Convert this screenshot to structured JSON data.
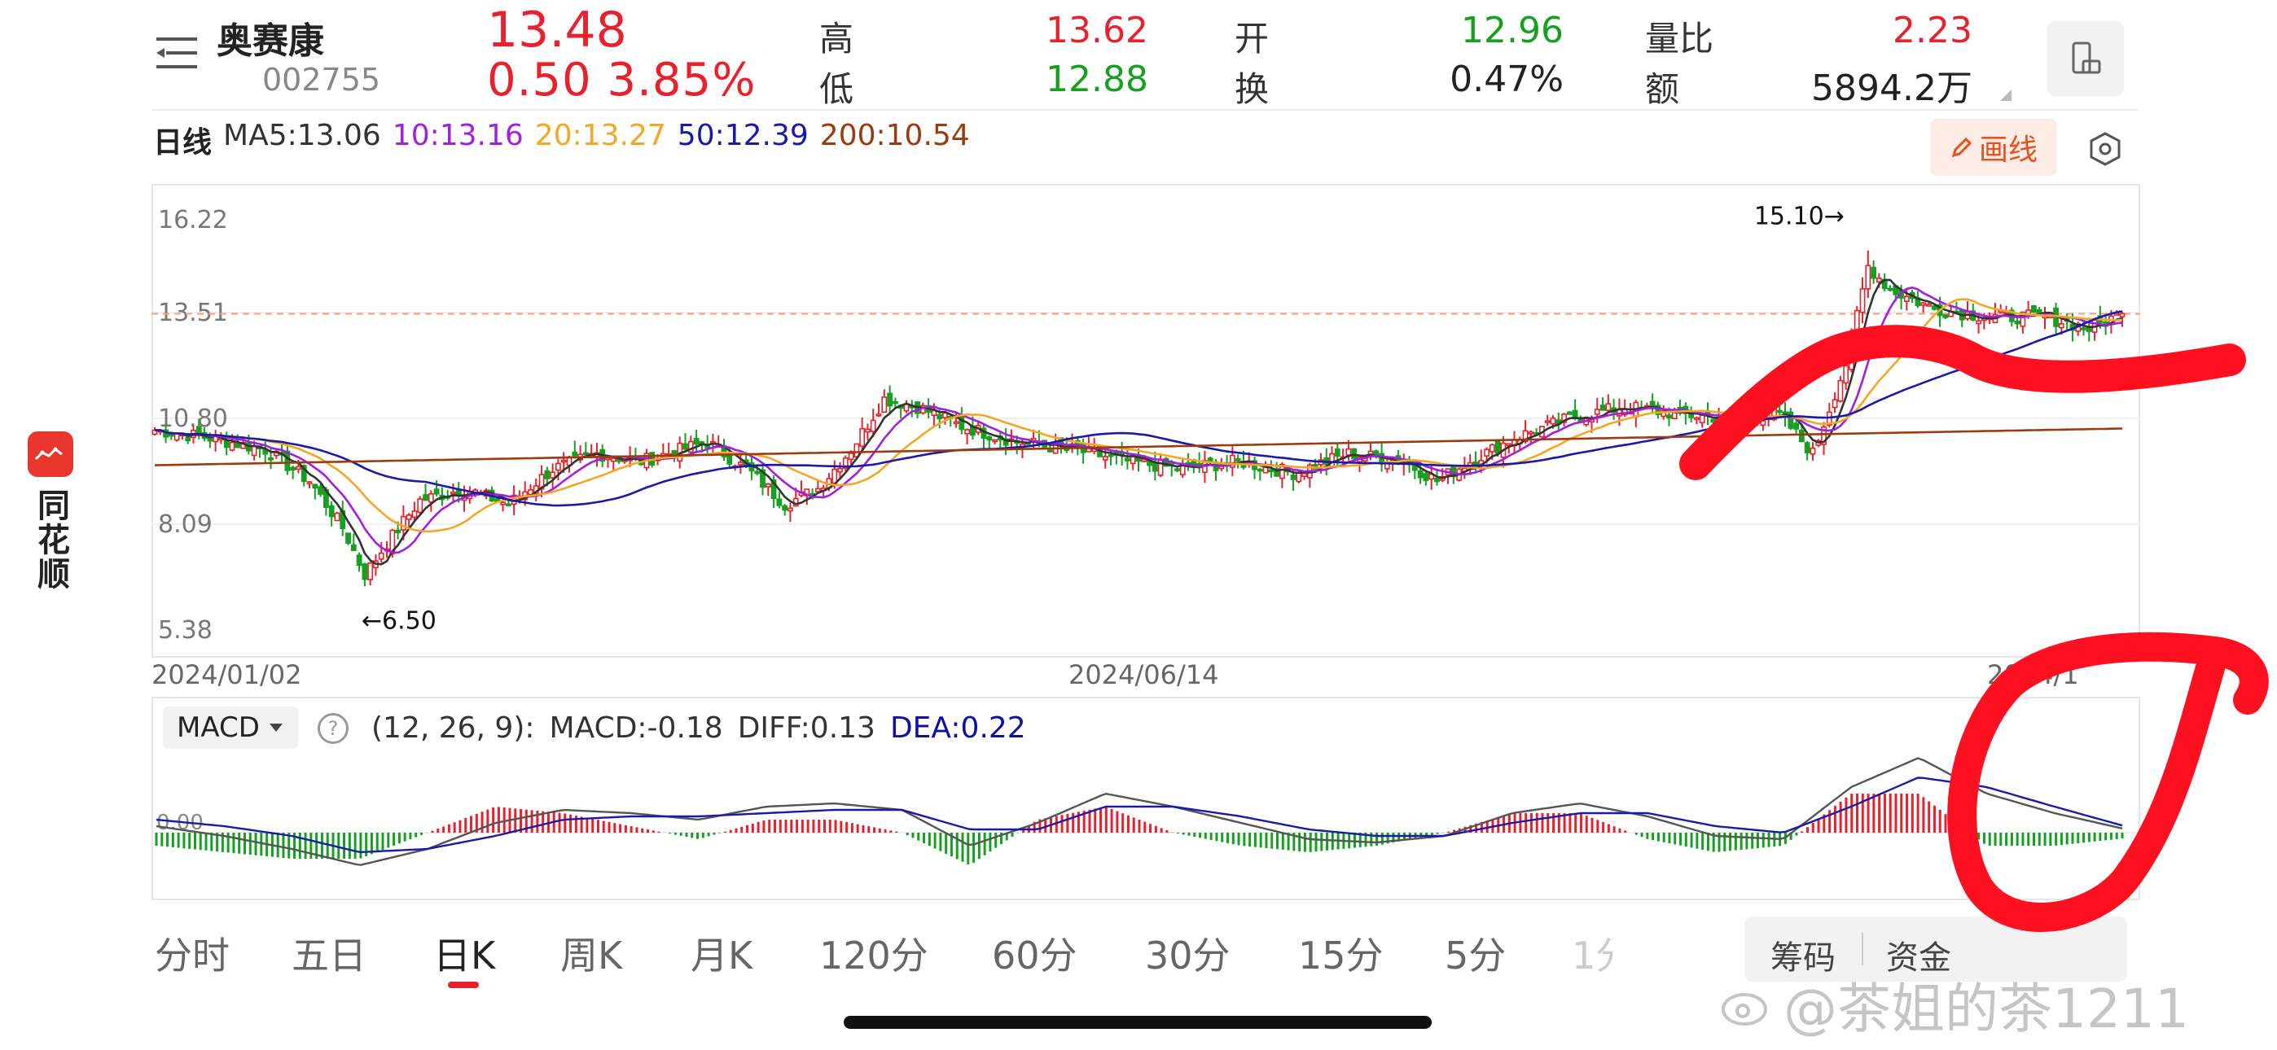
{
  "app": {
    "name": "同花顺"
  },
  "stock": {
    "name": "奥赛康",
    "code": "002755",
    "price": "13.48",
    "change": "0.50",
    "change_pct": "3.85%"
  },
  "quote": {
    "high_label": "高",
    "high": "13.62",
    "low_label": "低",
    "low": "12.88",
    "open_label": "开",
    "open": "12.96",
    "turnover_label": "换",
    "turnover": "0.47%",
    "volume_ratio_label": "量比",
    "volume_ratio": "2.23",
    "amount_label": "额",
    "amount": "5894.2万"
  },
  "ma_legend": {
    "title": "日线",
    "ma5": "MA5:13.06",
    "ma10": "10:13.16",
    "ma20": "20:13.27",
    "ma50": "50:12.39",
    "ma200": "200:10.54"
  },
  "toolbar": {
    "draw_label": "画线"
  },
  "colors": {
    "up": "#e8212c",
    "down": "#15a020",
    "ma5": "#333333",
    "ma10": "#a21fe0",
    "ma20": "#f5a623",
    "ma50": "#1a1aa8",
    "ma200": "#9c3b10",
    "annotation": "#ff1020"
  },
  "chart_data": [
    {
      "type": "candlestick",
      "y_ticks": [
        "16.22",
        "13.51",
        "10.80",
        "8.09",
        "5.38"
      ],
      "ylim": [
        5.38,
        16.22
      ],
      "current_price_line": 13.48,
      "x_labels": [
        "2024/01/02",
        "2024/06/14",
        "2024/1"
      ],
      "annotations": {
        "high": "15.10→",
        "low": "←6.50"
      },
      "ma_closing_values": {
        "MA5": 13.06,
        "MA10": 13.16,
        "MA20": 13.27,
        "MA50": 12.39,
        "MA200": 10.54
      },
      "close_path": [
        [
          0,
          10.5
        ],
        [
          10,
          10.3
        ],
        [
          20,
          10.0
        ],
        [
          28,
          9.2
        ],
        [
          34,
          8.0
        ],
        [
          38,
          6.8
        ],
        [
          42,
          7.6
        ],
        [
          48,
          8.7
        ],
        [
          56,
          9.0
        ],
        [
          64,
          8.6
        ],
        [
          72,
          9.5
        ],
        [
          80,
          9.9
        ],
        [
          88,
          9.7
        ],
        [
          100,
          10.2
        ],
        [
          108,
          9.4
        ],
        [
          114,
          8.6
        ],
        [
          120,
          9.0
        ],
        [
          126,
          10.0
        ],
        [
          132,
          11.3
        ],
        [
          138,
          11.1
        ],
        [
          146,
          10.6
        ],
        [
          156,
          10.2
        ],
        [
          166,
          10.0
        ],
        [
          176,
          9.7
        ],
        [
          186,
          9.5
        ],
        [
          196,
          9.7
        ],
        [
          206,
          9.4
        ],
        [
          216,
          9.9
        ],
        [
          226,
          9.7
        ],
        [
          232,
          9.2
        ],
        [
          238,
          9.7
        ],
        [
          246,
          10.3
        ],
        [
          256,
          10.8
        ],
        [
          266,
          11.1
        ],
        [
          276,
          10.9
        ],
        [
          286,
          10.8
        ],
        [
          294,
          10.9
        ],
        [
          300,
          9.9
        ],
        [
          306,
          12.2
        ],
        [
          310,
          14.7
        ],
        [
          314,
          14.1
        ],
        [
          322,
          13.6
        ],
        [
          332,
          13.4
        ],
        [
          342,
          13.4
        ],
        [
          350,
          13.1
        ],
        [
          356,
          13.48
        ]
      ]
    },
    {
      "type": "macd",
      "params": "(12, 26, 9):",
      "macd": "MACD:-0.18",
      "diff": "DIFF:0.13",
      "dea": "DEA:0.22",
      "zero_label": "0.00",
      "series": [
        {
          "name": "DIFF",
          "values": [
            0.2,
            -0.1,
            -0.5,
            -1.0,
            -0.5,
            0.3,
            0.7,
            0.6,
            0.4,
            0.8,
            0.9,
            0.7,
            -0.4,
            0.3,
            1.2,
            0.8,
            0.3,
            -0.2,
            -0.3,
            -0.1,
            0.6,
            0.9,
            0.5,
            -0.1,
            -0.2,
            1.4,
            2.3,
            1.2,
            0.6,
            0.13
          ]
        },
        {
          "name": "DEA",
          "values": [
            0.4,
            0.2,
            -0.1,
            -0.6,
            -0.5,
            -0.1,
            0.4,
            0.5,
            0.5,
            0.6,
            0.7,
            0.7,
            0.1,
            0.1,
            0.8,
            0.8,
            0.5,
            0.1,
            -0.1,
            -0.1,
            0.3,
            0.6,
            0.6,
            0.2,
            0.0,
            0.8,
            1.7,
            1.4,
            0.8,
            0.22
          ]
        }
      ]
    }
  ],
  "tabs": [
    "分时",
    "五日",
    "日K",
    "周K",
    "月K",
    "120分",
    "60分",
    "30分",
    "15分",
    "5分",
    "1分"
  ],
  "side_tabs": [
    "筹码",
    "资金"
  ],
  "watermark": "@茶姐的茶1211"
}
